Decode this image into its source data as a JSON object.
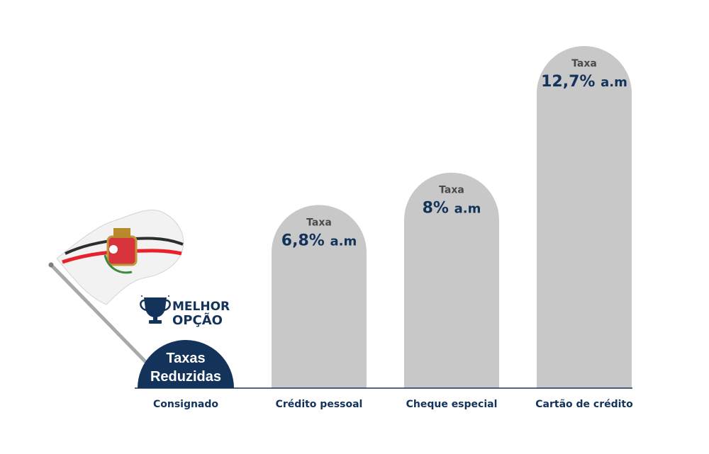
{
  "chart_data": {
    "type": "bar",
    "categories": [
      "Consignado",
      "Crédito pessoal",
      "Cheque especial",
      "Cartão de crédito"
    ],
    "bar_caption": "Taxa",
    "unit": "% a.m",
    "values": [
      null,
      6.8,
      8,
      12.7
    ],
    "value_labels": [
      "",
      "6,8%",
      "8%",
      "12,7%"
    ],
    "unit_label": "a.m",
    "highlight_index": 0,
    "ylim": [
      0,
      14
    ],
    "colors": {
      "bar": "#c8c8c8",
      "accent": "#13335b",
      "baseline": "#13335b"
    }
  },
  "badge": {
    "line1": "Taxas",
    "line2": "Reduzidas"
  },
  "best_option": {
    "line1": "MELHOR",
    "line2": "OPÇÃO",
    "icon": "trophy-icon"
  },
  "flag": {
    "icon": "flag-icon"
  }
}
